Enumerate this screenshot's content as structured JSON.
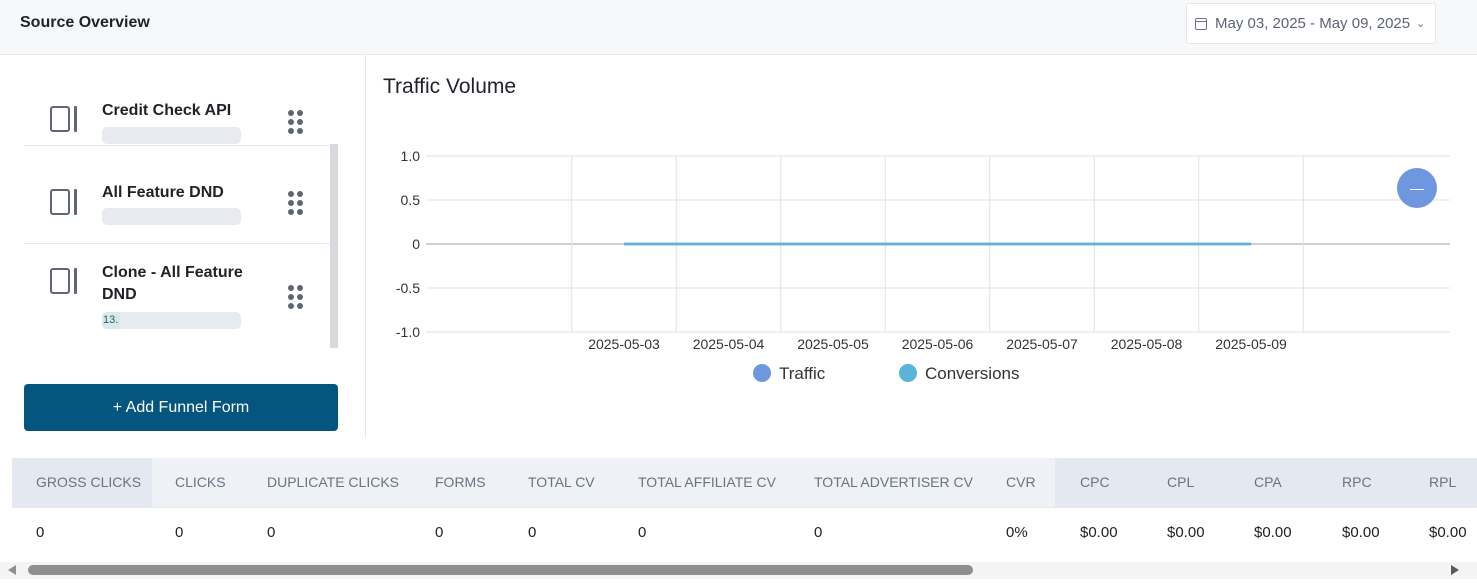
{
  "header": {
    "title": "Source Overview",
    "date_range": "May 03, 2025 - May 09, 2025"
  },
  "funnels": [
    {
      "name": "Credit Check API",
      "progress_label": "",
      "progress": 0
    },
    {
      "name": "All Feature DND",
      "progress_label": "",
      "progress": 0
    },
    {
      "name": "Clone - All Feature DND",
      "progress_label": "13.",
      "progress": 0.13
    }
  ],
  "add_button_label": "+ Add Funnel Form",
  "chart_data": {
    "type": "line",
    "title": "Traffic Volume",
    "x": [
      "2025-05-03",
      "2025-05-04",
      "2025-05-05",
      "2025-05-06",
      "2025-05-07",
      "2025-05-08",
      "2025-05-09"
    ],
    "series": [
      {
        "name": "Traffic",
        "values": [
          0,
          0,
          0,
          0,
          0,
          0,
          0
        ],
        "color": "#6f97e0"
      },
      {
        "name": "Conversions",
        "values": [
          0,
          0,
          0,
          0,
          0,
          0,
          0
        ],
        "color": "#5ab3d8"
      }
    ],
    "y_ticks": [
      "1.0",
      "0.5",
      "0",
      "-0.5",
      "-1.0"
    ],
    "ylim": [
      -1,
      1
    ],
    "grid": true,
    "legend": "bottom-center"
  },
  "collapse_button_icon": "minus-icon",
  "table": {
    "headers": [
      "GROSS CLICKS",
      "CLICKS",
      "DUPLICATE CLICKS",
      "FORMS",
      "TOTAL CV",
      "TOTAL AFFILIATE CV",
      "TOTAL ADVERTISER CV",
      "CVR",
      "CPC",
      "CPL",
      "CPA",
      "RPC",
      "RPL"
    ],
    "row": [
      "0",
      "0",
      "0",
      "0",
      "0",
      "0",
      "0",
      "0%",
      "$0.00",
      "$0.00",
      "$0.00",
      "$0.00",
      "$0.00"
    ]
  }
}
